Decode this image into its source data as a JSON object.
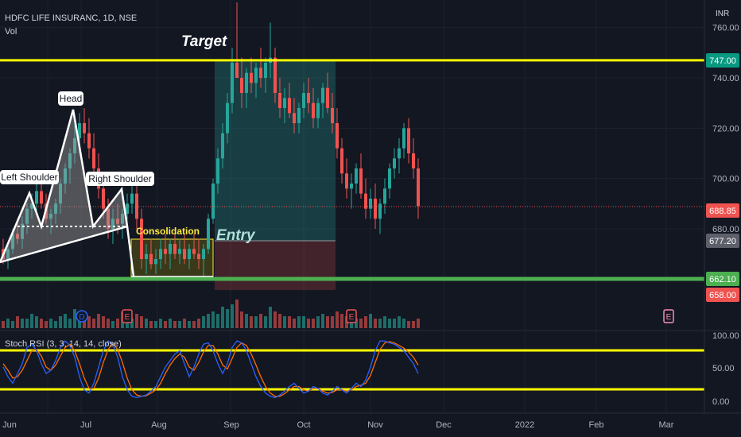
{
  "header": {
    "symbol": "HDFC LIFE INSURANC, 1D, NSE",
    "volume_label": "Vol",
    "currency": "INR"
  },
  "annotations": {
    "target": "Target",
    "entry": "Entry",
    "consolidation": "Consolidation",
    "head": "Head",
    "left_shoulder": "Left Shoulder",
    "right_shoulder": "Right Shoulder",
    "dividend_marker": "D",
    "earnings_marker": "E"
  },
  "price_tags": {
    "target": "747.00",
    "last": "688.85",
    "entry": "677.20",
    "support": "662.10",
    "stop": "658.00"
  },
  "indicator": {
    "label": "Stoch RSI (3, 3, 14, 14, close)"
  },
  "colors": {
    "background": "#131722",
    "up": "#26a69a",
    "down": "#ef5350",
    "level_line": "#ffff00",
    "support_line": "#4caf50",
    "stoch_k": "#2962ff",
    "stoch_d": "#ff6d00"
  },
  "chart_data": {
    "type": "candlestick",
    "price_axis_ticks": [
      "760.00",
      "740.00",
      "720.00",
      "700.00",
      "680.00"
    ],
    "rsi_axis_ticks": [
      "100.00",
      "50.00",
      "0.00"
    ],
    "x_tick_labels": [
      "Jun",
      "Jul",
      "Aug",
      "Sep",
      "Oct",
      "Nov",
      "Dec",
      "2022",
      "Feb",
      "Mar"
    ],
    "price_range": [
      655,
      765
    ],
    "levels": {
      "target": 747.0,
      "support": 662.1,
      "rsi_upper": 80,
      "rsi_lower": 20
    },
    "ohlc": [
      [
        672,
        676,
        666,
        668
      ],
      [
        668,
        674,
        664,
        672
      ],
      [
        672,
        680,
        670,
        678
      ],
      [
        678,
        684,
        674,
        676
      ],
      [
        676,
        685,
        672,
        682
      ],
      [
        682,
        690,
        678,
        688
      ],
      [
        688,
        694,
        684,
        690
      ],
      [
        690,
        698,
        686,
        695
      ],
      [
        695,
        698,
        688,
        690
      ],
      [
        690,
        694,
        682,
        684
      ],
      [
        684,
        688,
        678,
        686
      ],
      [
        686,
        692,
        682,
        690
      ],
      [
        690,
        700,
        686,
        698
      ],
      [
        698,
        706,
        694,
        704
      ],
      [
        704,
        712,
        698,
        710
      ],
      [
        710,
        722,
        706,
        716
      ],
      [
        716,
        726,
        710,
        722
      ],
      [
        722,
        728,
        714,
        718
      ],
      [
        718,
        724,
        708,
        712
      ],
      [
        712,
        718,
        700,
        704
      ],
      [
        704,
        710,
        692,
        696
      ],
      [
        696,
        702,
        684,
        688
      ],
      [
        688,
        692,
        676,
        680
      ],
      [
        680,
        688,
        674,
        684
      ],
      [
        684,
        690,
        678,
        682
      ],
      [
        682,
        688,
        676,
        686
      ],
      [
        686,
        694,
        682,
        690
      ],
      [
        690,
        698,
        686,
        694
      ],
      [
        694,
        700,
        680,
        684
      ],
      [
        684,
        688,
        664,
        668
      ],
      [
        668,
        674,
        662,
        670
      ],
      [
        670,
        676,
        664,
        666
      ],
      [
        666,
        672,
        662,
        668
      ],
      [
        668,
        676,
        664,
        672
      ],
      [
        672,
        678,
        666,
        670
      ],
      [
        670,
        676,
        664,
        674
      ],
      [
        674,
        678,
        668,
        670
      ],
      [
        670,
        676,
        666,
        672
      ],
      [
        672,
        678,
        666,
        668
      ],
      [
        668,
        674,
        664,
        672
      ],
      [
        672,
        678,
        668,
        670
      ],
      [
        670,
        676,
        664,
        668
      ],
      [
        668,
        674,
        660,
        672
      ],
      [
        672,
        686,
        670,
        684
      ],
      [
        684,
        700,
        682,
        698
      ],
      [
        698,
        712,
        694,
        708
      ],
      [
        708,
        722,
        704,
        718
      ],
      [
        718,
        734,
        714,
        730
      ],
      [
        730,
        752,
        726,
        746
      ],
      [
        746,
        770,
        740,
        740
      ],
      [
        740,
        748,
        728,
        734
      ],
      [
        734,
        744,
        728,
        742
      ],
      [
        742,
        748,
        734,
        738
      ],
      [
        738,
        746,
        732,
        744
      ],
      [
        744,
        752,
        736,
        740
      ],
      [
        740,
        748,
        734,
        746
      ],
      [
        746,
        762,
        740,
        748
      ],
      [
        748,
        752,
        730,
        734
      ],
      [
        734,
        740,
        724,
        728
      ],
      [
        728,
        736,
        722,
        732
      ],
      [
        732,
        738,
        724,
        726
      ],
      [
        726,
        732,
        718,
        722
      ],
      [
        722,
        730,
        718,
        728
      ],
      [
        728,
        738,
        724,
        734
      ],
      [
        734,
        740,
        726,
        730
      ],
      [
        730,
        736,
        720,
        724
      ],
      [
        724,
        732,
        720,
        730
      ],
      [
        730,
        738,
        724,
        736
      ],
      [
        736,
        742,
        726,
        728
      ],
      [
        728,
        734,
        718,
        722
      ],
      [
        722,
        728,
        708,
        712
      ],
      [
        712,
        716,
        698,
        702
      ],
      [
        702,
        708,
        692,
        696
      ],
      [
        696,
        702,
        688,
        698
      ],
      [
        698,
        706,
        694,
        704
      ],
      [
        704,
        710,
        692,
        694
      ],
      [
        694,
        700,
        684,
        688
      ],
      [
        688,
        696,
        684,
        692
      ],
      [
        692,
        698,
        680,
        684
      ],
      [
        684,
        692,
        678,
        690
      ],
      [
        690,
        700,
        686,
        696
      ],
      [
        696,
        706,
        692,
        704
      ],
      [
        704,
        712,
        700,
        708
      ],
      [
        708,
        716,
        702,
        712
      ],
      [
        712,
        722,
        708,
        720
      ],
      [
        720,
        724,
        706,
        710
      ],
      [
        710,
        716,
        700,
        704
      ],
      [
        704,
        708,
        684,
        689
      ]
    ],
    "volume": [
      3,
      4,
      3,
      5,
      4,
      4,
      6,
      5,
      4,
      3,
      4,
      3,
      5,
      6,
      4,
      8,
      5,
      4,
      5,
      4,
      6,
      5,
      4,
      3,
      4,
      7,
      5,
      4,
      6,
      5,
      4,
      3,
      3,
      4,
      3,
      4,
      3,
      3,
      4,
      3,
      3,
      4,
      5,
      6,
      7,
      6,
      9,
      8,
      10,
      12,
      7,
      6,
      5,
      5,
      6,
      5,
      9,
      7,
      6,
      5,
      5,
      4,
      5,
      5,
      4,
      4,
      5,
      6,
      5,
      5,
      7,
      6,
      5,
      5,
      4,
      4,
      5,
      6,
      4,
      4,
      5,
      4,
      4,
      5,
      4,
      3,
      3,
      4
    ],
    "stoch_k": [
      55,
      40,
      30,
      45,
      60,
      85,
      90,
      80,
      60,
      45,
      50,
      65,
      85,
      95,
      88,
      70,
      40,
      20,
      15,
      30,
      55,
      80,
      95,
      90,
      70,
      40,
      20,
      10,
      8,
      10,
      12,
      18,
      25,
      40,
      55,
      65,
      75,
      80,
      60,
      40,
      55,
      75,
      90,
      92,
      80,
      60,
      45,
      60,
      85,
      95,
      92,
      80,
      60,
      40,
      25,
      15,
      10,
      8,
      12,
      18,
      25,
      30,
      22,
      15,
      18,
      25,
      22,
      15,
      12,
      18,
      25,
      20,
      15,
      22,
      30,
      25,
      35,
      55,
      80,
      95,
      95,
      92,
      90,
      85,
      80,
      70,
      60,
      45
    ],
    "stoch_d": [
      60,
      50,
      38,
      40,
      50,
      65,
      80,
      82,
      72,
      55,
      50,
      58,
      72,
      85,
      90,
      80,
      60,
      38,
      22,
      22,
      38,
      62,
      82,
      92,
      82,
      62,
      38,
      20,
      12,
      10,
      11,
      15,
      20,
      30,
      45,
      58,
      68,
      75,
      70,
      55,
      50,
      62,
      78,
      88,
      88,
      75,
      58,
      52,
      68,
      85,
      92,
      88,
      75,
      58,
      40,
      25,
      15,
      10,
      10,
      14,
      20,
      25,
      25,
      20,
      18,
      22,
      22,
      18,
      15,
      16,
      20,
      20,
      18,
      20,
      25,
      27,
      30,
      42,
      62,
      82,
      92,
      94,
      92,
      88,
      84,
      78,
      70,
      58
    ]
  }
}
